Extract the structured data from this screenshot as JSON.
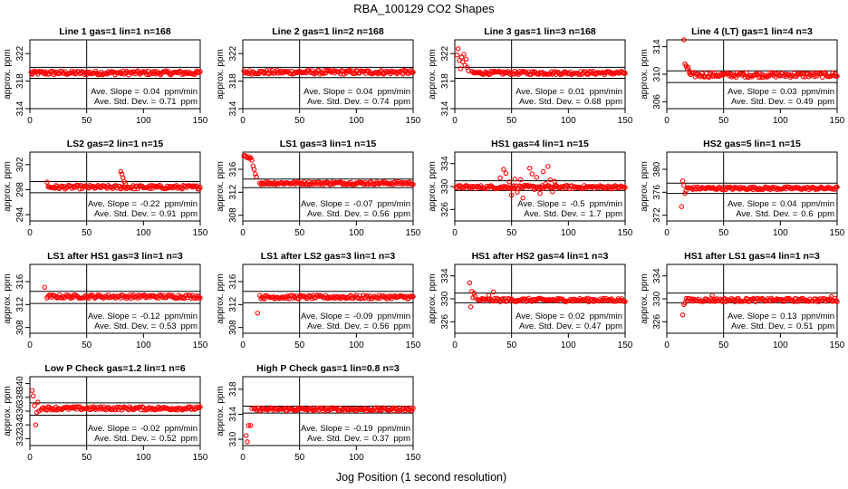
{
  "figure": {
    "title": "RBA_100129  CO2 Shapes",
    "xlabel": "Jog Position (1 second resolution)",
    "ylabel": "approx. ppm",
    "point_color": "#ff0000",
    "ref_line_color": "#000000"
  },
  "chart_data": [
    {
      "type": "scatter",
      "title": "Line 1 gas=1 lin=1 n=168",
      "xlim": [
        0,
        150
      ],
      "ylim": [
        314,
        324
      ],
      "yticks": [
        314,
        318,
        322
      ],
      "xticks": [
        0,
        50,
        100,
        150
      ],
      "vline_x": 50,
      "hlines": [
        320,
        318.4
      ],
      "slope_label": "Ave. Slope =",
      "slope_value": "0.04",
      "slope_unit": "ppm/min",
      "std_label": "Ave. Std. Dev. =",
      "std_value": "0.71",
      "std_unit": "ppm",
      "segments": [
        {
          "x0": 1,
          "x1": 150,
          "y": 319.2,
          "noise": 0.3
        }
      ],
      "extra_points": [
        [
          2,
          319.0
        ]
      ]
    },
    {
      "type": "scatter",
      "title": "Line 2 gas=1 lin=2 n=168",
      "xlim": [
        0,
        150
      ],
      "ylim": [
        314,
        324
      ],
      "yticks": [
        314,
        318,
        322
      ],
      "xticks": [
        0,
        50,
        100,
        150
      ],
      "vline_x": 50,
      "hlines": [
        320,
        318.5
      ],
      "slope_label": "Ave. Slope =",
      "slope_value": "0.04",
      "slope_unit": "ppm/min",
      "std_label": "Ave. Std. Dev. =",
      "std_value": "0.74",
      "std_unit": "ppm",
      "segments": [
        {
          "x0": 1,
          "x1": 150,
          "y": 319.3,
          "noise": 0.3
        }
      ],
      "extra_points": []
    },
    {
      "type": "scatter",
      "title": "Line 3 gas=1 lin=3 n=168",
      "xlim": [
        0,
        150
      ],
      "ylim": [
        314,
        324
      ],
      "yticks": [
        314,
        318,
        322
      ],
      "xticks": [
        0,
        50,
        100,
        150
      ],
      "vline_x": 50,
      "hlines": [
        320,
        318.4
      ],
      "slope_label": "Ave. Slope =",
      "slope_value": "0.01",
      "slope_unit": "ppm/min",
      "std_label": "Ave. Std. Dev. =",
      "std_value": "0.68",
      "std_unit": "ppm",
      "segments": [
        {
          "x0": 15,
          "x1": 150,
          "y": 319.2,
          "noise": 0.25
        }
      ],
      "extra_points": [
        [
          2,
          321.8
        ],
        [
          3,
          322.7
        ],
        [
          4,
          321.0
        ],
        [
          5,
          319.8
        ],
        [
          6,
          321.5
        ],
        [
          7,
          320.8
        ],
        [
          8,
          321.9
        ],
        [
          9,
          320.3
        ],
        [
          10,
          321.2
        ],
        [
          11,
          320.0
        ],
        [
          12,
          319.5
        ]
      ]
    },
    {
      "type": "scatter",
      "title": "Line 4 (LT) gas=1 lin=4 n=3",
      "xlim": [
        0,
        150
      ],
      "ylim": [
        305,
        315
      ],
      "yticks": [
        306,
        310,
        314
      ],
      "xticks": [
        0,
        50,
        100,
        150
      ],
      "vline_x": 50,
      "hlines": [
        310.5,
        308.8
      ],
      "slope_label": "Ave. Slope =",
      "slope_value": "0.03",
      "slope_unit": "ppm/min",
      "std_label": "Ave. Std. Dev. =",
      "std_value": "0.49",
      "std_unit": "ppm",
      "segments": [
        {
          "x0": 20,
          "x1": 150,
          "y": 309.9,
          "noise": 0.35
        }
      ],
      "extra_points": [
        [
          15,
          315.0
        ],
        [
          16,
          311.5
        ],
        [
          17,
          311.2
        ],
        [
          18,
          310.8
        ],
        [
          19,
          311.0
        ],
        [
          20,
          310.4
        ]
      ]
    },
    {
      "type": "scatter",
      "title": "LS2 gas=2 lin=1 n=15",
      "xlim": [
        0,
        150
      ],
      "ylim": [
        293,
        304
      ],
      "yticks": [
        294,
        298,
        302
      ],
      "xticks": [
        0,
        50,
        100,
        150
      ],
      "vline_x": 50,
      "hlines": [
        299.3,
        297.5
      ],
      "slope_label": "Ave. Slope =",
      "slope_value": "-0.22",
      "slope_unit": "ppm/min",
      "std_label": "Ave. Std. Dev. =",
      "std_value": "0.91",
      "std_unit": "ppm",
      "segments": [
        {
          "x0": 16,
          "x1": 150,
          "y": 298.4,
          "noise": 0.3
        }
      ],
      "extra_points": [
        [
          15,
          299.2
        ],
        [
          80,
          300.9
        ],
        [
          81,
          300.5
        ],
        [
          82,
          299.9
        ],
        [
          83,
          299.3
        ],
        [
          84,
          299.0
        ]
      ]
    },
    {
      "type": "scatter",
      "title": "LS1 gas=3 lin=1 n=15",
      "xlim": [
        0,
        150
      ],
      "ylim": [
        307,
        319
      ],
      "yticks": [
        308,
        312,
        316
      ],
      "xticks": [
        0,
        50,
        100,
        150
      ],
      "vline_x": 50,
      "hlines": [
        314.3,
        312.8
      ],
      "slope_label": "Ave. Slope =",
      "slope_value": "-0.07",
      "slope_unit": "ppm/min",
      "std_label": "Ave. Std. Dev. =",
      "std_value": "0.56",
      "std_unit": "ppm",
      "segments": [
        {
          "x0": 15,
          "x1": 150,
          "y": 313.6,
          "noise": 0.25
        }
      ],
      "extra_points": [
        [
          1,
          318.3
        ],
        [
          2,
          318.4
        ],
        [
          3,
          318.2
        ],
        [
          4,
          318.0
        ],
        [
          5,
          318.2
        ],
        [
          6,
          317.9
        ],
        [
          7,
          318.0
        ],
        [
          8,
          317.6
        ],
        [
          9,
          316.6
        ],
        [
          10,
          316.0
        ],
        [
          11,
          315.2
        ],
        [
          12,
          314.7
        ]
      ]
    },
    {
      "type": "scatter",
      "title": "HS1 gas=4 lin=1 n=15",
      "xlim": [
        0,
        150
      ],
      "ylim": [
        324,
        336
      ],
      "yticks": [
        326,
        330,
        334
      ],
      "xticks": [
        0,
        50,
        100,
        150
      ],
      "vline_x": 50,
      "hlines": [
        331,
        329.3
      ],
      "slope_label": "Ave. Slope =",
      "slope_value": "-0.5",
      "slope_unit": "ppm/min",
      "std_label": "Ave. Std. Dev. =",
      "std_value": "1.7",
      "std_unit": "ppm",
      "segments": [
        {
          "x0": 1,
          "x1": 150,
          "y": 329.9,
          "noise": 0.3
        }
      ],
      "extra_points": [
        [
          40,
          331.5
        ],
        [
          43,
          333.0
        ],
        [
          45,
          332.3
        ],
        [
          48,
          330.8
        ],
        [
          50,
          328.5
        ],
        [
          53,
          331.3
        ],
        [
          55,
          329.0
        ],
        [
          58,
          331.2
        ],
        [
          60,
          328.0
        ],
        [
          64,
          330.2
        ],
        [
          66,
          333.2
        ],
        [
          68,
          332.2
        ],
        [
          70,
          329.5
        ],
        [
          72,
          331.6
        ],
        [
          75,
          328.8
        ],
        [
          78,
          332.6
        ],
        [
          80,
          330.5
        ],
        [
          82,
          333.5
        ],
        [
          84,
          331.2
        ],
        [
          86,
          329.1
        ],
        [
          88,
          330.9
        ]
      ]
    },
    {
      "type": "scatter",
      "title": "HS2 gas=5 lin=1 n=15",
      "xlim": [
        0,
        150
      ],
      "ylim": [
        371,
        383
      ],
      "yticks": [
        372,
        376,
        380
      ],
      "xticks": [
        0,
        50,
        100,
        150
      ],
      "vline_x": 50,
      "hlines": [
        377.6,
        375.8
      ],
      "slope_label": "Ave. Slope =",
      "slope_value": "0.04",
      "slope_unit": "ppm/min",
      "std_label": "Ave. Std. Dev. =",
      "std_value": "0.6",
      "std_unit": "ppm",
      "segments": [
        {
          "x0": 18,
          "x1": 150,
          "y": 376.7,
          "noise": 0.25
        }
      ],
      "extra_points": [
        [
          13,
          373.5
        ],
        [
          14,
          378.0
        ],
        [
          15,
          377.2
        ],
        [
          16,
          375.8
        ],
        [
          17,
          376.3
        ]
      ]
    },
    {
      "type": "scatter",
      "title": "LS1 after HS1 gas=3 lin=1 n=3",
      "xlim": [
        0,
        150
      ],
      "ylim": [
        307,
        319
      ],
      "yticks": [
        308,
        312,
        316
      ],
      "xticks": [
        0,
        50,
        100,
        150
      ],
      "vline_x": 50,
      "hlines": [
        314.3,
        312.2
      ],
      "slope_label": "Ave. Slope =",
      "slope_value": "-0.12",
      "slope_unit": "ppm/min",
      "std_label": "Ave. Std. Dev. =",
      "std_value": "0.53",
      "std_unit": "ppm",
      "segments": [
        {
          "x0": 15,
          "x1": 150,
          "y": 313.4,
          "noise": 0.3
        }
      ],
      "extra_points": [
        [
          13,
          315.0
        ]
      ]
    },
    {
      "type": "scatter",
      "title": "LS1 after LS2 gas=3 lin=1 n=3",
      "xlim": [
        0,
        150
      ],
      "ylim": [
        307,
        319
      ],
      "yticks": [
        308,
        312,
        316
      ],
      "xticks": [
        0,
        50,
        100,
        150
      ],
      "vline_x": 50,
      "hlines": [
        314.3,
        312.3
      ],
      "slope_label": "Ave. Slope =",
      "slope_value": "-0.09",
      "slope_unit": "ppm/min",
      "std_label": "Ave. Std. Dev. =",
      "std_value": "0.56",
      "std_unit": "ppm",
      "segments": [
        {
          "x0": 15,
          "x1": 150,
          "y": 313.3,
          "noise": 0.3
        }
      ],
      "extra_points": [
        [
          13,
          310.5
        ]
      ]
    },
    {
      "type": "scatter",
      "title": "HS1 after HS2 gas=4 lin=1 n=3",
      "xlim": [
        0,
        150
      ],
      "ylim": [
        324,
        336
      ],
      "yticks": [
        326,
        330,
        334
      ],
      "xticks": [
        0,
        50,
        100,
        150
      ],
      "vline_x": 50,
      "hlines": [
        331,
        329.3
      ],
      "slope_label": "Ave. Slope =",
      "slope_value": "0.02",
      "slope_unit": "ppm/min",
      "std_label": "Ave. Std. Dev. =",
      "std_value": "0.47",
      "std_unit": "ppm",
      "segments": [
        {
          "x0": 20,
          "x1": 150,
          "y": 329.8,
          "noise": 0.3
        }
      ],
      "extra_points": [
        [
          13,
          332.8
        ],
        [
          14,
          328.6
        ],
        [
          15,
          331.3
        ],
        [
          16,
          330.2
        ],
        [
          17,
          331.0
        ],
        [
          18,
          330.4
        ],
        [
          30,
          330.6
        ],
        [
          34,
          331.2
        ]
      ]
    },
    {
      "type": "scatter",
      "title": "HS1 after LS1 gas=4 lin=1 n=3",
      "xlim": [
        0,
        150
      ],
      "ylim": [
        324,
        336
      ],
      "yticks": [
        326,
        330,
        334
      ],
      "xticks": [
        0,
        50,
        100,
        150
      ],
      "vline_x": 50,
      "hlines": [
        331,
        329.3
      ],
      "slope_label": "Ave. Slope =",
      "slope_value": "0.13",
      "slope_unit": "ppm/min",
      "std_label": "Ave. Std. Dev. =",
      "std_value": "0.51",
      "std_unit": "ppm",
      "segments": [
        {
          "x0": 17,
          "x1": 150,
          "y": 329.8,
          "noise": 0.3
        }
      ],
      "extra_points": [
        [
          14,
          327.2
        ],
        [
          15,
          329.0
        ],
        [
          16,
          329.3
        ],
        [
          40,
          330.6
        ],
        [
          145,
          330.4
        ]
      ]
    },
    {
      "type": "scatter",
      "title": "Low P Check gas=1.2 lin=1 n=6",
      "xlim": [
        0,
        150
      ],
      "ylim": [
        331,
        341
      ],
      "yticks": [
        332,
        334,
        336,
        338,
        340
      ],
      "xticks": [
        0,
        50,
        100,
        150
      ],
      "vline_x": 50,
      "hlines": [
        337.2,
        335.4
      ],
      "slope_label": "Ave. Slope =",
      "slope_value": "-0.02",
      "slope_unit": "ppm/min",
      "std_label": "Ave. Std. Dev. =",
      "std_value": "0.52",
      "std_unit": "ppm",
      "segments": [
        {
          "x0": 10,
          "x1": 150,
          "y": 336.4,
          "noise": 0.25
        }
      ],
      "extra_points": [
        [
          2,
          339.0
        ],
        [
          3,
          338.2
        ],
        [
          4,
          336.8
        ],
        [
          5,
          334.0
        ],
        [
          6,
          335.8
        ],
        [
          7,
          337.3
        ],
        [
          8,
          336.0
        ]
      ]
    },
    {
      "type": "scatter",
      "title": "High P Check gas=1 lin=0.8 n=3",
      "xlim": [
        0,
        150
      ],
      "ylim": [
        309,
        320
      ],
      "yticks": [
        310,
        314,
        318
      ],
      "xticks": [
        0,
        50,
        100,
        150
      ],
      "vline_x": 50,
      "hlines": [
        315.3,
        314.2
      ],
      "slope_label": "Ave. Slope =",
      "slope_value": "-0.19",
      "slope_unit": "ppm/min",
      "std_label": "Ave. Std. Dev. =",
      "std_value": "0.37",
      "std_unit": "ppm",
      "segments": [
        {
          "x0": 10,
          "x1": 150,
          "y": 314.8,
          "noise": 0.25
        }
      ],
      "extra_points": [
        [
          3,
          310.6
        ],
        [
          4,
          309.6
        ],
        [
          5,
          312.2
        ],
        [
          7,
          312.2
        ],
        [
          8,
          314.9
        ]
      ]
    }
  ]
}
